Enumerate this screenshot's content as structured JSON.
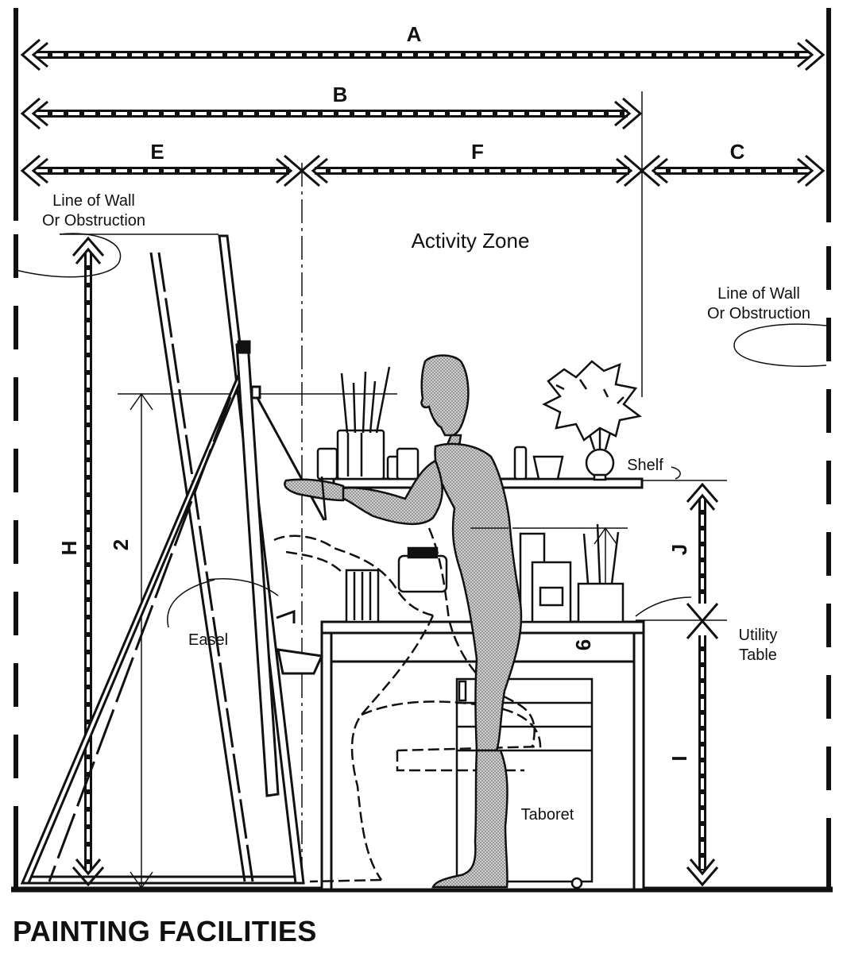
{
  "title": "PAINTING FACILITIES",
  "dimensions": {
    "A": "A",
    "B": "B",
    "C": "C",
    "E": "E",
    "F": "F",
    "H": "H",
    "I": "I",
    "J": "J",
    "two": "2",
    "six": "6"
  },
  "labels": {
    "wall_left_1": "Line of Wall",
    "wall_left_2": "Or Obstruction",
    "wall_right_1": "Line of Wall",
    "wall_right_2": "Or Obstruction",
    "activity_zone": "Activity Zone",
    "shelf": "Shelf",
    "easel": "Easel",
    "utility_1": "Utility",
    "utility_2": "Table",
    "taboret": "Taboret"
  },
  "colors": {
    "ink": "#111111",
    "figure_fill": "#b8b8b8",
    "background": "#ffffff"
  }
}
